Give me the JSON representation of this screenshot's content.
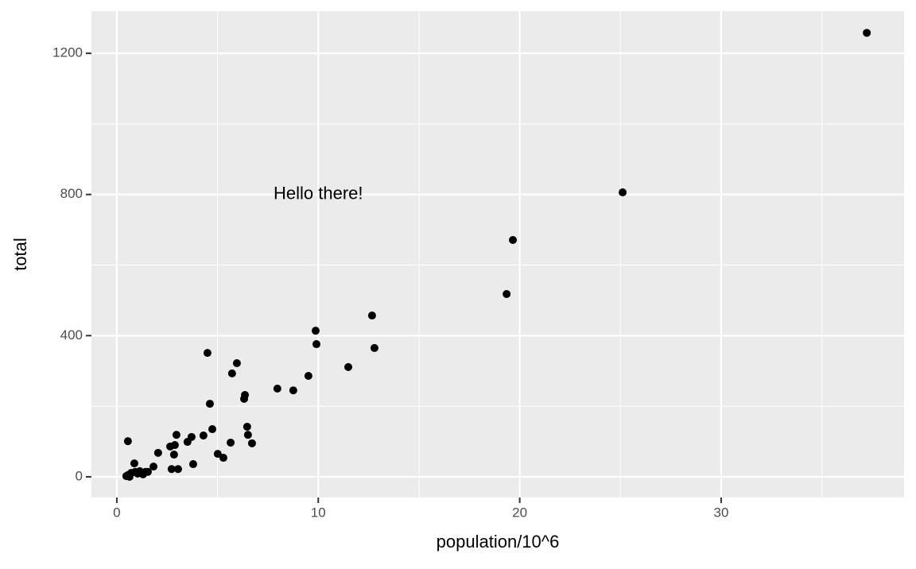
{
  "chart_data": {
    "type": "scatter",
    "xlabel": "population/10^6",
    "ylabel": "total",
    "x": [
      37.23,
      25.11,
      19.66,
      19.35,
      12.67,
      12.79,
      9.87,
      9.91,
      11.49,
      9.51,
      7.97,
      8.76,
      4.5,
      5.96,
      5.72,
      4.62,
      6.36,
      6.32,
      6.47,
      6.51,
      6.71,
      4.74,
      4.3,
      5.65,
      5.01,
      5.29,
      2.96,
      3.71,
      3.51,
      2.65,
      2.88,
      2.84,
      3.79,
      2.72,
      3.04,
      0.55,
      2.05,
      1.82,
      0.87,
      1.54,
      0.55,
      0.71,
      0.91,
      1.14,
      1.3,
      0.47,
      0.63,
      1.03,
      1.42
    ],
    "values": [
      1258,
      806,
      671,
      518,
      457,
      365,
      414,
      376,
      311,
      286,
      250,
      245,
      351,
      322,
      293,
      207,
      232,
      221,
      142,
      119,
      95,
      135,
      117,
      97,
      65,
      54,
      119,
      113,
      99,
      86,
      90,
      63,
      36,
      22,
      22,
      101,
      68,
      29,
      38,
      14,
      5,
      11,
      14,
      16,
      7,
      2,
      0,
      9,
      14
    ],
    "color": "#000000",
    "xlim": [
      -1.26,
      39.08
    ],
    "ylim": [
      -58.5,
      1319.5
    ],
    "xticks": [
      0,
      10,
      20,
      30
    ],
    "yticks": [
      0,
      400,
      800,
      1200
    ],
    "grid": true,
    "annotation": {
      "text": "Hello there!",
      "x": 10,
      "y": 800
    }
  }
}
